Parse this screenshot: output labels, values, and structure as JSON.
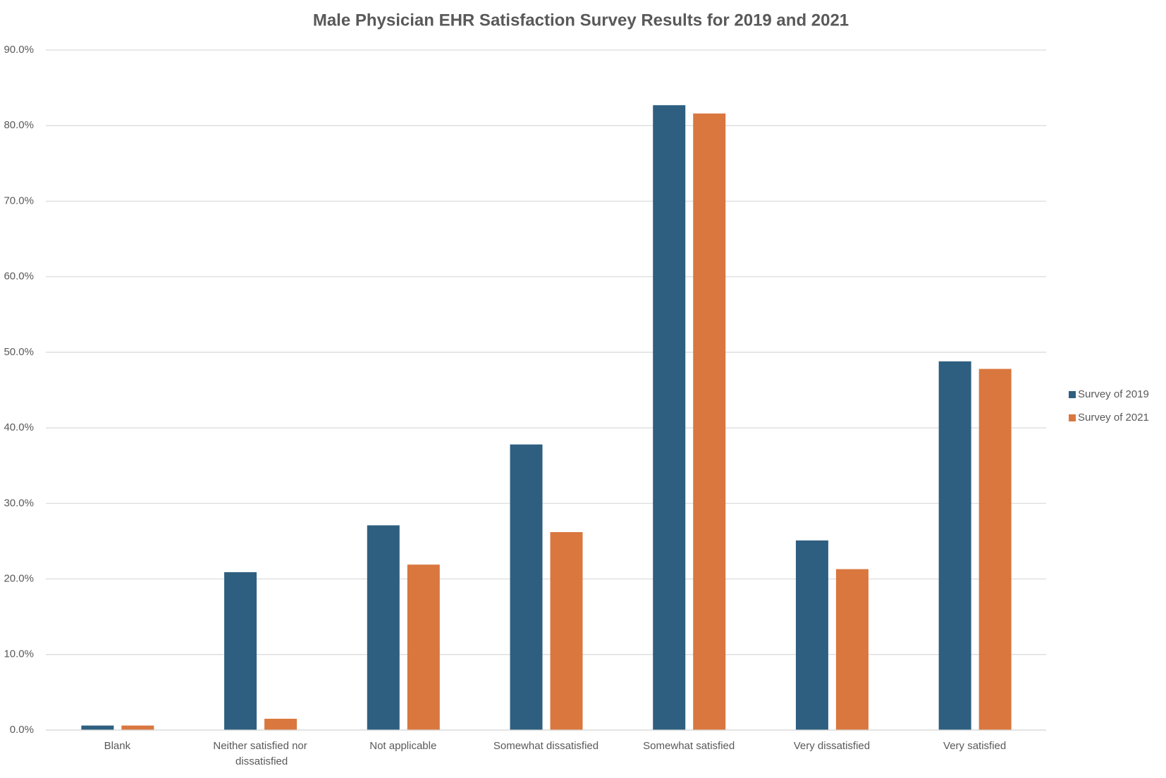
{
  "chart_data": {
    "type": "bar",
    "title": "Male Physician EHR Satisfaction Survey Results for 2019 and 2021",
    "categories": [
      "Blank",
      "Neither satisfied nor dissatisfied",
      "Not applicable",
      "Somewhat dissatisfied",
      "Somewhat satisfied",
      "Very dissatisfied",
      "Very satisfied"
    ],
    "series": [
      {
        "name": "Survey of 2019",
        "color": "#2e5f80",
        "values": [
          0.6,
          20.9,
          27.1,
          37.8,
          82.7,
          25.1,
          48.8
        ]
      },
      {
        "name": "Survey of 2021",
        "color": "#d9773f",
        "values": [
          0.6,
          1.5,
          21.9,
          26.2,
          81.6,
          21.3,
          47.8
        ]
      }
    ],
    "ylim": [
      0,
      90
    ],
    "yticks": [
      {
        "value": 0,
        "label": "0.0%"
      },
      {
        "value": 10,
        "label": "10.0%"
      },
      {
        "value": 20,
        "label": "20.0%"
      },
      {
        "value": 30,
        "label": "30.0%"
      },
      {
        "value": 40,
        "label": "40.0%"
      },
      {
        "value": 50,
        "label": "50.0%"
      },
      {
        "value": 60,
        "label": "60.0%"
      },
      {
        "value": 70,
        "label": "70.0%"
      },
      {
        "value": 80,
        "label": "80.0%"
      },
      {
        "value": 90,
        "label": "90.0%"
      }
    ],
    "grid": true,
    "legend": "right"
  }
}
